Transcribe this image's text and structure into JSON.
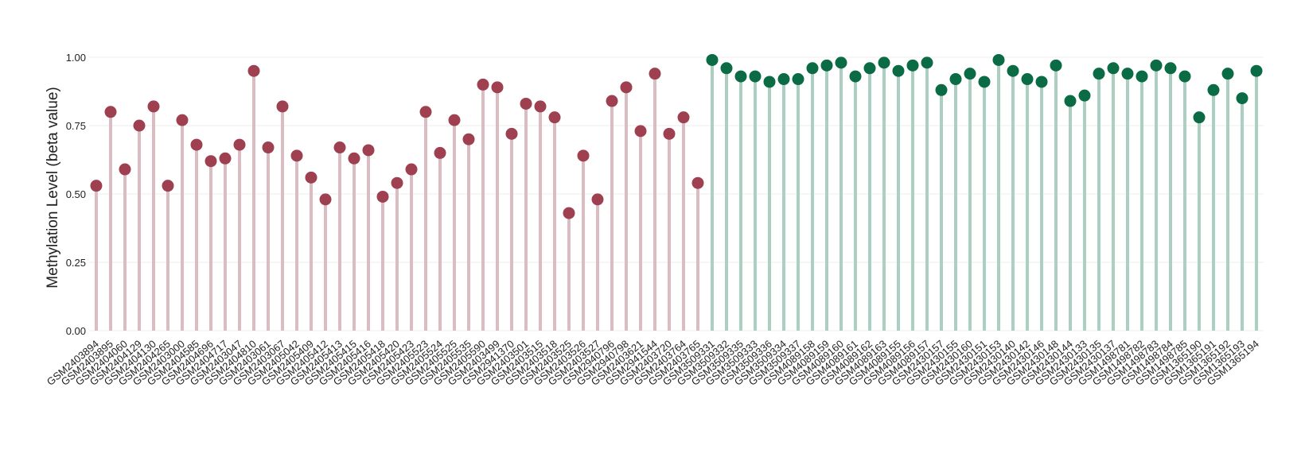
{
  "chart_data": {
    "type": "lollipop",
    "y_label": "Methylation Level (beta value)",
    "categories": [
      "GSM2403894",
      "GSM2403895",
      "GSM2404060",
      "GSM2404129",
      "GSM2404130",
      "GSM2404265",
      "GSM2403000",
      "GSM2404585",
      "GSM2404696",
      "GSM2404717",
      "GSM2403047",
      "GSM2404810",
      "GSM2403061",
      "GSM2403067",
      "GSM2405042",
      "GSM2405409",
      "GSM2405412",
      "GSM2405413",
      "GSM2405415",
      "GSM2405416",
      "GSM2405418",
      "GSM2405420",
      "GSM2405423",
      "GSM2405523",
      "GSM2405524",
      "GSM2405525",
      "GSM2405535",
      "GSM2405590",
      "GSM2403499",
      "GSM2941370",
      "GSM2403501",
      "GSM2403515",
      "GSM2403518",
      "GSM2403525",
      "GSM2403526",
      "GSM2403527",
      "GSM2940796",
      "GSM2940798",
      "GSM2403621",
      "GSM2941544",
      "GSM2403720",
      "GSM2403764",
      "GSM2403765",
      "GSM3509331",
      "GSM3509332",
      "GSM3509335",
      "GSM3509333",
      "GSM3509336",
      "GSM3509334",
      "GSM3509337",
      "GSM4089158",
      "GSM4089159",
      "GSM4089160",
      "GSM4089161",
      "GSM4089162",
      "GSM4089163",
      "GSM4089155",
      "GSM4089156",
      "GSM4089157",
      "GSM2430157",
      "GSM2430155",
      "GSM2430160",
      "GSM2430151",
      "GSM2430153",
      "GSM2430140",
      "GSM2430142",
      "GSM2430146",
      "GSM2430148",
      "GSM2430144",
      "GSM2430133",
      "GSM2430135",
      "GSM2430137",
      "GSM1498781",
      "GSM1498782",
      "GSM1498783",
      "GSM1498784",
      "GSM1498785",
      "GSM1365190",
      "GSM1365191",
      "GSM1365192",
      "GSM1365193",
      "GSM1365194"
    ],
    "series": [
      {
        "color": "#9e4050",
        "stem_color": "#dcbcc3",
        "values": [
          0.53,
          0.8,
          0.59,
          0.75,
          0.82,
          0.53,
          0.77,
          0.68,
          0.62,
          0.63,
          0.68,
          0.95,
          0.67,
          0.82,
          0.64,
          0.56,
          0.48,
          0.67,
          0.63,
          0.66,
          0.49,
          0.54,
          0.59,
          0.8,
          0.65,
          0.77,
          0.7,
          0.9,
          0.89,
          0.72,
          0.83,
          0.82,
          0.78,
          0.43,
          0.64,
          0.48,
          0.84,
          0.89,
          0.73,
          0.94,
          0.72,
          0.78,
          0.54,
          null,
          null,
          null,
          null,
          null,
          null,
          null,
          null,
          null,
          null,
          null,
          null,
          null,
          null,
          null,
          null,
          null,
          null,
          null,
          null,
          null,
          null,
          null,
          null,
          null,
          null,
          null,
          null,
          null,
          null,
          null,
          null,
          null,
          null,
          null,
          null,
          null,
          null,
          null
        ]
      },
      {
        "color": "#0b6b45",
        "stem_color": "#abcfc1",
        "values": [
          null,
          null,
          null,
          null,
          null,
          null,
          null,
          null,
          null,
          null,
          null,
          null,
          null,
          null,
          null,
          null,
          null,
          null,
          null,
          null,
          null,
          null,
          null,
          null,
          null,
          null,
          null,
          null,
          null,
          null,
          null,
          null,
          null,
          null,
          null,
          null,
          null,
          null,
          null,
          null,
          null,
          null,
          null,
          0.99,
          0.96,
          0.93,
          0.93,
          0.91,
          0.92,
          0.92,
          0.96,
          0.97,
          0.98,
          0.93,
          0.96,
          0.98,
          0.95,
          0.97,
          0.98,
          0.88,
          0.92,
          0.94,
          0.91,
          0.99,
          0.95,
          0.92,
          0.91,
          0.97,
          0.84,
          0.86,
          0.94,
          0.96,
          0.94,
          0.93,
          0.97,
          0.96,
          0.93,
          0.78,
          0.88,
          0.94,
          0.85,
          0.95
        ]
      }
    ],
    "ylim": [
      0,
      1.0
    ],
    "yticks": [
      {
        "value": 0,
        "label": "0.00"
      },
      {
        "value": 0.25,
        "label": "0.25"
      },
      {
        "value": 0.5,
        "label": "0.50"
      },
      {
        "value": 0.75,
        "label": "0.75"
      },
      {
        "value": 1.0,
        "label": "1.00"
      }
    ],
    "grid": true
  }
}
